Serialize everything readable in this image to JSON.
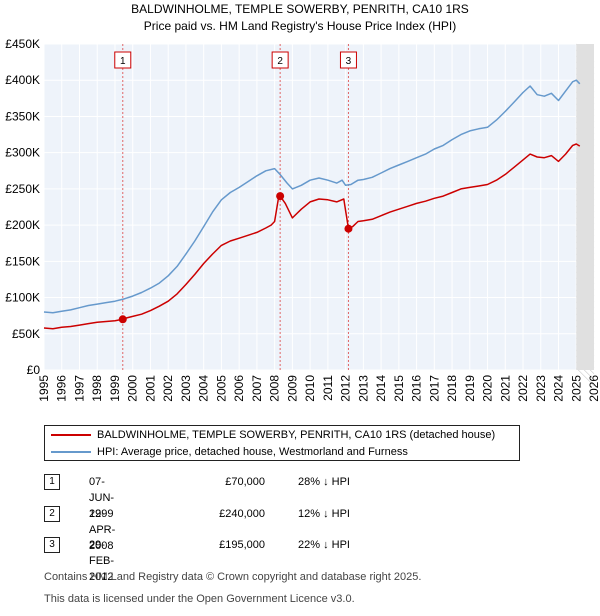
{
  "chart_data": {
    "type": "line",
    "title_line1": "BALDWINHOLME, TEMPLE SOWERBY, PENRITH, CA10 1RS",
    "title_line2": "Price paid vs. HM Land Registry's House Price Index (HPI)",
    "xlim": [
      1995,
      2026
    ],
    "ylim": [
      0,
      450000
    ],
    "y_ticks": [
      {
        "value": 0,
        "label": "£0"
      },
      {
        "value": 50000,
        "label": "£50K"
      },
      {
        "value": 100000,
        "label": "£100K"
      },
      {
        "value": 150000,
        "label": "£150K"
      },
      {
        "value": 200000,
        "label": "£200K"
      },
      {
        "value": 250000,
        "label": "£250K"
      },
      {
        "value": 300000,
        "label": "£300K"
      },
      {
        "value": 350000,
        "label": "£350K"
      },
      {
        "value": 400000,
        "label": "£400K"
      },
      {
        "value": 450000,
        "label": "£450K"
      }
    ],
    "x_ticks": [
      "1995",
      "1996",
      "1997",
      "1998",
      "1999",
      "2000",
      "2001",
      "2002",
      "2003",
      "2004",
      "2005",
      "2006",
      "2007",
      "2008",
      "2009",
      "2010",
      "2011",
      "2012",
      "2013",
      "2014",
      "2015",
      "2016",
      "2017",
      "2018",
      "2019",
      "2020",
      "2021",
      "2022",
      "2023",
      "2024",
      "2025",
      "2026"
    ],
    "forecast_start": 2025.0,
    "series": [
      {
        "name": "HPI: Average price, detached house, Westmorland and Furness",
        "color": "#6699cc",
        "points": [
          [
            1995.0,
            80000
          ],
          [
            1995.5,
            79000
          ],
          [
            1996.0,
            81000
          ],
          [
            1996.5,
            83000
          ],
          [
            1997.0,
            86000
          ],
          [
            1997.5,
            89000
          ],
          [
            1998.0,
            91000
          ],
          [
            1998.5,
            93000
          ],
          [
            1999.0,
            95000
          ],
          [
            1999.5,
            98000
          ],
          [
            2000.0,
            102000
          ],
          [
            2000.5,
            107000
          ],
          [
            2001.0,
            113000
          ],
          [
            2001.5,
            120000
          ],
          [
            2002.0,
            130000
          ],
          [
            2002.5,
            143000
          ],
          [
            2003.0,
            160000
          ],
          [
            2003.5,
            178000
          ],
          [
            2004.0,
            198000
          ],
          [
            2004.5,
            218000
          ],
          [
            2005.0,
            235000
          ],
          [
            2005.5,
            245000
          ],
          [
            2006.0,
            252000
          ],
          [
            2006.5,
            260000
          ],
          [
            2007.0,
            268000
          ],
          [
            2007.5,
            275000
          ],
          [
            2008.0,
            278000
          ],
          [
            2008.3,
            270000
          ],
          [
            2008.7,
            258000
          ],
          [
            2009.0,
            250000
          ],
          [
            2009.5,
            255000
          ],
          [
            2010.0,
            262000
          ],
          [
            2010.5,
            265000
          ],
          [
            2011.0,
            262000
          ],
          [
            2011.5,
            258000
          ],
          [
            2011.8,
            262000
          ],
          [
            2012.0,
            255000
          ],
          [
            2012.3,
            256000
          ],
          [
            2012.7,
            262000
          ],
          [
            2013.0,
            263000
          ],
          [
            2013.5,
            266000
          ],
          [
            2014.0,
            272000
          ],
          [
            2014.5,
            278000
          ],
          [
            2015.0,
            283000
          ],
          [
            2015.5,
            288000
          ],
          [
            2016.0,
            293000
          ],
          [
            2016.5,
            298000
          ],
          [
            2017.0,
            305000
          ],
          [
            2017.5,
            310000
          ],
          [
            2018.0,
            318000
          ],
          [
            2018.5,
            325000
          ],
          [
            2019.0,
            330000
          ],
          [
            2019.5,
            333000
          ],
          [
            2020.0,
            335000
          ],
          [
            2020.5,
            345000
          ],
          [
            2021.0,
            357000
          ],
          [
            2021.5,
            370000
          ],
          [
            2022.0,
            383000
          ],
          [
            2022.4,
            392000
          ],
          [
            2022.8,
            380000
          ],
          [
            2023.2,
            378000
          ],
          [
            2023.6,
            382000
          ],
          [
            2024.0,
            372000
          ],
          [
            2024.4,
            385000
          ],
          [
            2024.8,
            398000
          ],
          [
            2025.0,
            400000
          ],
          [
            2025.2,
            395000
          ]
        ]
      },
      {
        "name": "BALDWINHOLME, TEMPLE SOWERBY, PENRITH, CA10 1RS (detached house)",
        "color": "#cc0000",
        "points": [
          [
            1995.0,
            58000
          ],
          [
            1995.5,
            57000
          ],
          [
            1996.0,
            59000
          ],
          [
            1996.5,
            60000
          ],
          [
            1997.0,
            62000
          ],
          [
            1997.5,
            64000
          ],
          [
            1998.0,
            66000
          ],
          [
            1998.5,
            67000
          ],
          [
            1999.0,
            68000
          ],
          [
            1999.44,
            70000
          ],
          [
            1999.5,
            71000
          ],
          [
            2000.0,
            74000
          ],
          [
            2000.5,
            77000
          ],
          [
            2001.0,
            82000
          ],
          [
            2001.5,
            88000
          ],
          [
            2002.0,
            95000
          ],
          [
            2002.5,
            105000
          ],
          [
            2003.0,
            118000
          ],
          [
            2003.5,
            132000
          ],
          [
            2004.0,
            147000
          ],
          [
            2004.5,
            160000
          ],
          [
            2005.0,
            172000
          ],
          [
            2005.5,
            178000
          ],
          [
            2006.0,
            182000
          ],
          [
            2006.5,
            186000
          ],
          [
            2007.0,
            190000
          ],
          [
            2007.5,
            196000
          ],
          [
            2007.8,
            200000
          ],
          [
            2008.0,
            205000
          ],
          [
            2008.2,
            235000
          ],
          [
            2008.31,
            240000
          ],
          [
            2008.6,
            230000
          ],
          [
            2009.0,
            210000
          ],
          [
            2009.5,
            222000
          ],
          [
            2010.0,
            232000
          ],
          [
            2010.5,
            236000
          ],
          [
            2011.0,
            235000
          ],
          [
            2011.5,
            232000
          ],
          [
            2011.9,
            236000
          ],
          [
            2012.0,
            220000
          ],
          [
            2012.16,
            195000
          ],
          [
            2012.4,
            198000
          ],
          [
            2012.7,
            205000
          ],
          [
            2013.0,
            206000
          ],
          [
            2013.5,
            208000
          ],
          [
            2014.0,
            213000
          ],
          [
            2014.5,
            218000
          ],
          [
            2015.0,
            222000
          ],
          [
            2015.5,
            226000
          ],
          [
            2016.0,
            230000
          ],
          [
            2016.5,
            233000
          ],
          [
            2017.0,
            237000
          ],
          [
            2017.5,
            240000
          ],
          [
            2018.0,
            245000
          ],
          [
            2018.5,
            250000
          ],
          [
            2019.0,
            252000
          ],
          [
            2019.5,
            254000
          ],
          [
            2020.0,
            256000
          ],
          [
            2020.5,
            262000
          ],
          [
            2021.0,
            270000
          ],
          [
            2021.5,
            280000
          ],
          [
            2022.0,
            290000
          ],
          [
            2022.4,
            298000
          ],
          [
            2022.8,
            294000
          ],
          [
            2023.2,
            293000
          ],
          [
            2023.6,
            296000
          ],
          [
            2024.0,
            288000
          ],
          [
            2024.4,
            298000
          ],
          [
            2024.8,
            310000
          ],
          [
            2025.0,
            312000
          ],
          [
            2025.2,
            309000
          ]
        ]
      }
    ],
    "sales": [
      {
        "id": "1",
        "x": 1999.44,
        "price": 70000
      },
      {
        "id": "2",
        "x": 2008.31,
        "price": 240000
      },
      {
        "id": "3",
        "x": 2012.16,
        "price": 195000
      }
    ]
  },
  "legend": {
    "property": "BALDWINHOLME, TEMPLE SOWERBY, PENRITH, CA10 1RS (detached house)",
    "hpi": "HPI: Average price, detached house, Westmorland and Furness",
    "property_color": "#cc0000",
    "hpi_color": "#6699cc"
  },
  "transactions": [
    {
      "num": "1",
      "date": "07-JUN-1999",
      "price": "£70,000",
      "hpi": "28% ↓ HPI"
    },
    {
      "num": "2",
      "date": "22-APR-2008",
      "price": "£240,000",
      "hpi": "12% ↓ HPI"
    },
    {
      "num": "3",
      "date": "29-FEB-2012",
      "price": "£195,000",
      "hpi": "22% ↓ HPI"
    }
  ],
  "footer": {
    "line1": "Contains HM Land Registry data © Crown copyright and database right 2025.",
    "line2": "This data is licensed under the Open Government Licence v3.0."
  }
}
